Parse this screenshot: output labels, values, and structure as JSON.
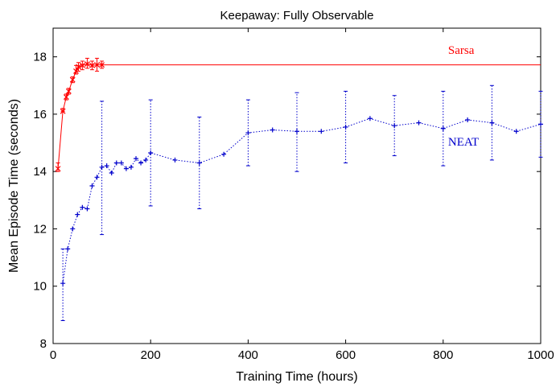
{
  "chart_data": {
    "type": "line",
    "title": "Keepaway: Fully Observable",
    "xlabel": "Training Time (hours)",
    "ylabel": "Mean Episode Time (seconds)",
    "xlim": [
      0,
      1000
    ],
    "ylim": [
      8,
      19
    ],
    "xticks": [
      "0",
      "200",
      "400",
      "600",
      "800",
      "1000"
    ],
    "yticks": [
      "8",
      "10",
      "12",
      "14",
      "16",
      "18"
    ],
    "grid": false,
    "series": [
      {
        "name": "Sarsa",
        "color": "#ff0000",
        "style": "solid",
        "marker": "x",
        "points": [
          {
            "x": 10,
            "y": 14.1,
            "lo": 14.0,
            "hi": 14.3
          },
          {
            "x": 20,
            "y": 16.1,
            "lo": 16.1,
            "hi": 16.2
          },
          {
            "x": 27,
            "y": 16.6,
            "lo": 16.5,
            "hi": 16.7
          },
          {
            "x": 32,
            "y": 16.8,
            "lo": 16.7,
            "hi": 16.9
          },
          {
            "x": 40,
            "y": 17.2,
            "lo": 17.1,
            "hi": 17.3
          },
          {
            "x": 47,
            "y": 17.5,
            "lo": 17.4,
            "hi": 17.7
          },
          {
            "x": 52,
            "y": 17.65,
            "lo": 17.5,
            "hi": 17.8
          },
          {
            "x": 60,
            "y": 17.7,
            "lo": 17.55,
            "hi": 17.85
          },
          {
            "x": 70,
            "y": 17.75,
            "lo": 17.6,
            "hi": 17.95
          },
          {
            "x": 80,
            "y": 17.7,
            "lo": 17.55,
            "hi": 17.85
          },
          {
            "x": 90,
            "y": 17.72,
            "lo": 17.5,
            "hi": 17.95
          },
          {
            "x": 100,
            "y": 17.72,
            "lo": 17.6,
            "hi": 17.85
          },
          {
            "x": 1000,
            "y": 17.72
          }
        ],
        "label_pos": {
          "x": 810,
          "y": 18.1
        }
      },
      {
        "name": "NEAT",
        "color": "#0000cc",
        "style": "dotted",
        "marker": "+",
        "points": [
          {
            "x": 20,
            "y": 10.1,
            "lo": 8.8,
            "hi": 11.3
          },
          {
            "x": 30,
            "y": 11.3
          },
          {
            "x": 40,
            "y": 12.0
          },
          {
            "x": 50,
            "y": 12.5
          },
          {
            "x": 60,
            "y": 12.75
          },
          {
            "x": 70,
            "y": 12.7
          },
          {
            "x": 80,
            "y": 13.5
          },
          {
            "x": 90,
            "y": 13.8
          },
          {
            "x": 100,
            "y": 14.15,
            "lo": 11.8,
            "hi": 16.45
          },
          {
            "x": 110,
            "y": 14.2
          },
          {
            "x": 120,
            "y": 13.95
          },
          {
            "x": 130,
            "y": 14.3
          },
          {
            "x": 140,
            "y": 14.3
          },
          {
            "x": 150,
            "y": 14.1
          },
          {
            "x": 160,
            "y": 14.15
          },
          {
            "x": 170,
            "y": 14.45
          },
          {
            "x": 180,
            "y": 14.3
          },
          {
            "x": 190,
            "y": 14.4
          },
          {
            "x": 200,
            "y": 14.65,
            "lo": 12.8,
            "hi": 16.5
          },
          {
            "x": 250,
            "y": 14.4
          },
          {
            "x": 300,
            "y": 14.3,
            "lo": 12.7,
            "hi": 15.9
          },
          {
            "x": 350,
            "y": 14.6
          },
          {
            "x": 400,
            "y": 15.35,
            "lo": 14.2,
            "hi": 16.5
          },
          {
            "x": 450,
            "y": 15.45
          },
          {
            "x": 500,
            "y": 15.4,
            "lo": 14.0,
            "hi": 16.75
          },
          {
            "x": 550,
            "y": 15.4
          },
          {
            "x": 600,
            "y": 15.55,
            "lo": 14.3,
            "hi": 16.8
          },
          {
            "x": 650,
            "y": 15.85
          },
          {
            "x": 700,
            "y": 15.6,
            "lo": 14.55,
            "hi": 16.65
          },
          {
            "x": 750,
            "y": 15.7
          },
          {
            "x": 800,
            "y": 15.5,
            "lo": 14.2,
            "hi": 16.8
          },
          {
            "x": 850,
            "y": 15.8
          },
          {
            "x": 900,
            "y": 15.7,
            "lo": 14.4,
            "hi": 17.0
          },
          {
            "x": 950,
            "y": 15.4
          },
          {
            "x": 1000,
            "y": 15.65,
            "lo": 14.5,
            "hi": 16.8
          }
        ],
        "label_pos": {
          "x": 810,
          "y": 14.9
        }
      }
    ]
  }
}
